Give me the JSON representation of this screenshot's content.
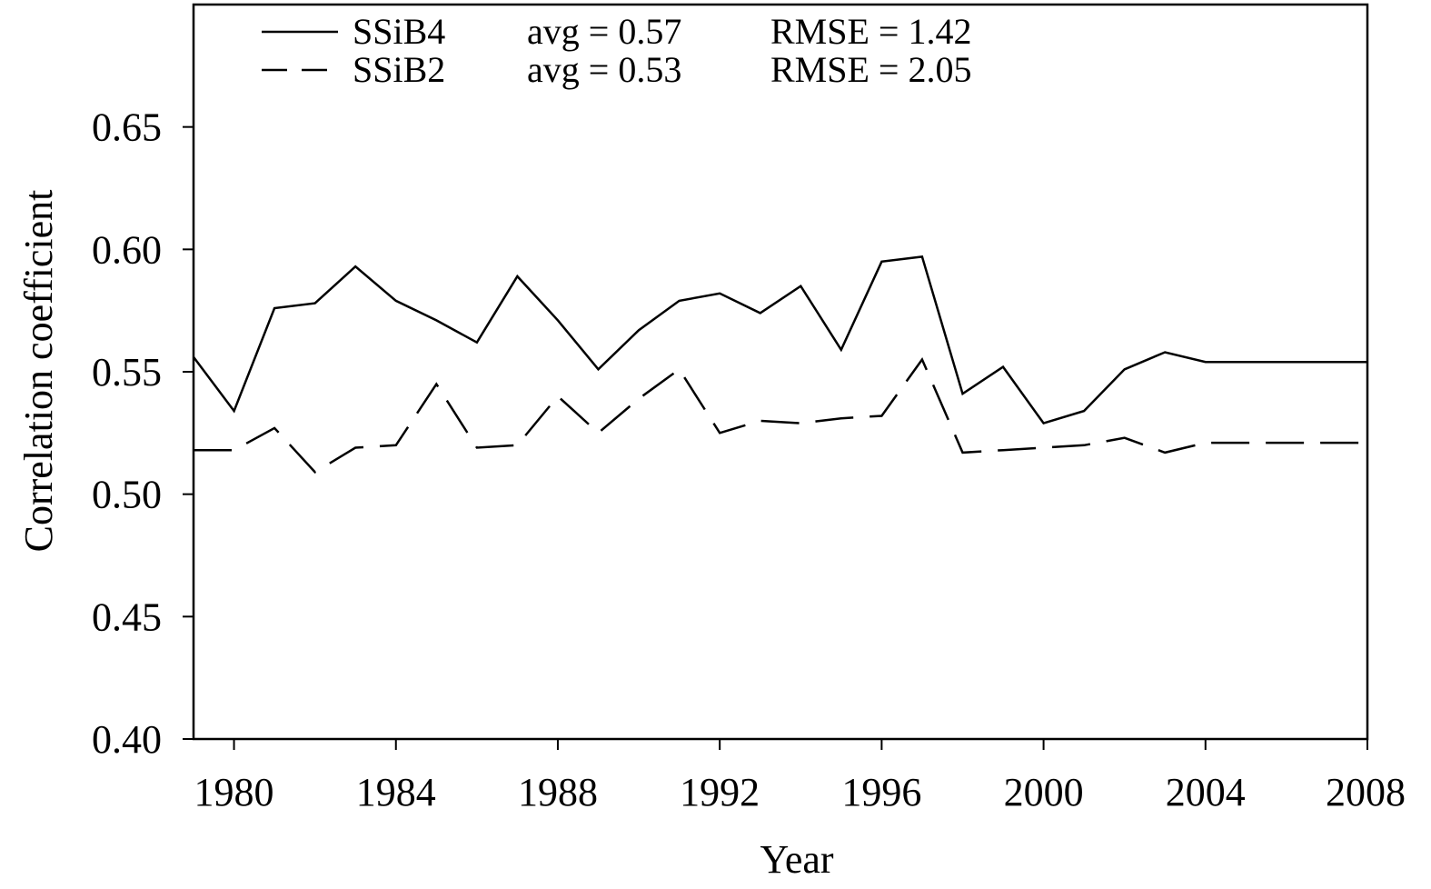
{
  "chart_data": {
    "type": "line",
    "title": "",
    "xlabel": "Year",
    "ylabel": "Correlation coefficient",
    "xlim": [
      1979,
      2008
    ],
    "ylim": [
      0.4,
      0.7
    ],
    "xticks": [
      1980,
      1984,
      1988,
      1992,
      1996,
      2000,
      2004,
      2008
    ],
    "xtick_labels": [
      "1980",
      "1984",
      "1988",
      "1992",
      "1996",
      "2000",
      "2004",
      "2008"
    ],
    "yticks": [
      0.4,
      0.45,
      0.5,
      0.55,
      0.6,
      0.65
    ],
    "ytick_labels": [
      "0.40",
      "0.45",
      "0.50",
      "0.55",
      "0.60",
      "0.65"
    ],
    "grid": false,
    "legend_position": "top-left",
    "x": [
      1979,
      1980,
      1981,
      1982,
      1983,
      1984,
      1985,
      1986,
      1987,
      1988,
      1989,
      1990,
      1991,
      1992,
      1993,
      1994,
      1995,
      1996,
      1997,
      1998,
      1999,
      2000,
      2001,
      2002,
      2003,
      2004,
      2005,
      2006,
      2007,
      2008
    ],
    "series": [
      {
        "name": "SSiB4",
        "style": "solid",
        "color": "#000000",
        "values": [
          0.556,
          0.534,
          0.576,
          0.578,
          0.593,
          0.579,
          0.571,
          0.562,
          0.589,
          0.571,
          0.551,
          0.567,
          0.579,
          0.582,
          0.574,
          0.585,
          0.559,
          0.595,
          0.597,
          0.541,
          0.552,
          0.529,
          0.534,
          0.551,
          0.558,
          0.554,
          0.554,
          0.554,
          0.554,
          0.554
        ]
      },
      {
        "name": "SSiB2",
        "style": "dashed",
        "color": "#000000",
        "values": [
          0.518,
          0.518,
          0.527,
          0.509,
          0.519,
          0.52,
          0.545,
          0.519,
          0.52,
          0.54,
          0.525,
          0.539,
          0.551,
          0.525,
          0.53,
          0.529,
          0.531,
          0.532,
          0.555,
          0.517,
          0.518,
          0.519,
          0.52,
          0.523,
          0.517,
          0.521,
          0.521,
          0.521,
          0.521,
          0.521
        ]
      }
    ],
    "legend": [
      {
        "label": "SSiB4",
        "avg": "avg = 0.57",
        "rmse": "RMSE = 1.42"
      },
      {
        "label": "SSiB2",
        "avg": "avg = 0.53",
        "rmse": "RMSE = 2.05"
      }
    ]
  }
}
